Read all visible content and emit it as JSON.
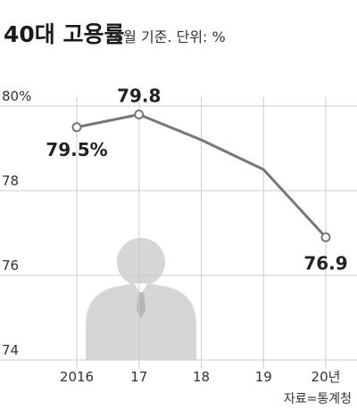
{
  "chart_data": {
    "type": "line",
    "title": "40대 고용률",
    "subtitle": "6월 기준. 단위: %",
    "categories": [
      "2016",
      "17",
      "18",
      "19",
      "20년"
    ],
    "series": [
      {
        "values": [
          79.5,
          79.8,
          79.2,
          78.5,
          76.9
        ]
      }
    ],
    "ylim": [
      74,
      80
    ],
    "yticks": [
      "74",
      "76",
      "78",
      "80%"
    ],
    "ytick_values": [
      74,
      76,
      78,
      80
    ],
    "data_labels": [
      {
        "index": 0,
        "text": "79.5%"
      },
      {
        "index": 1,
        "text": "79.8"
      },
      {
        "index": 4,
        "text": "76.9"
      }
    ],
    "source": "자료=통계청",
    "grid": true,
    "colors": {
      "line": "#777777",
      "marker_fill": "#ffffff",
      "grid": "#cccccc",
      "silhouette": "#d6d6d6",
      "text": "#222222",
      "axis_label": "#333333"
    },
    "decoration": "person-silhouette-icon"
  }
}
